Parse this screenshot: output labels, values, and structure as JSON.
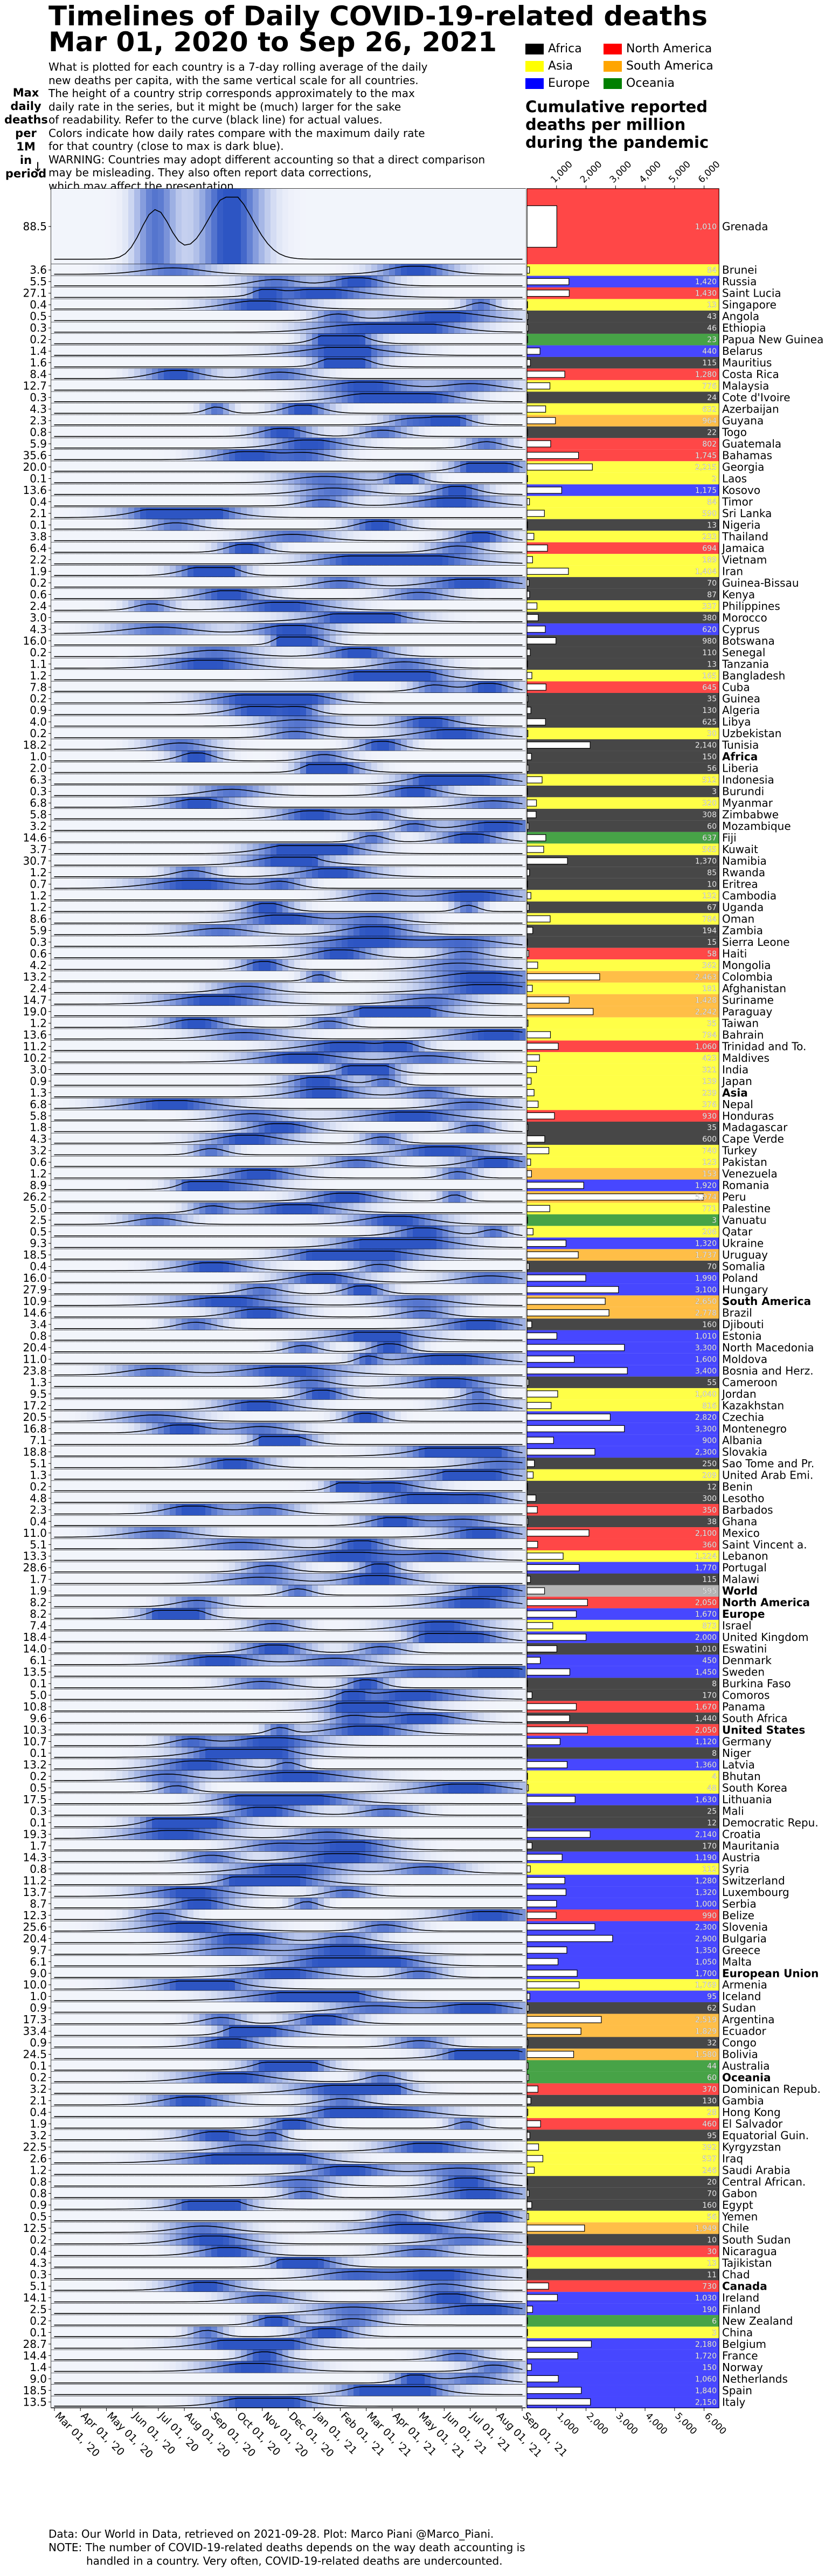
{
  "title_line1": "Timelines of Daily COVID-19-related deaths",
  "title_line2": "Mar 01, 2020 to Sep 26, 2021",
  "description": [
    "What is plotted for each country is a 7-day rolling average of the daily",
    "new deaths per capita, with the same vertical scale for all countries.",
    "The height of a country strip corresponds approximately to the max",
    "daily rate in the series, but it might be (much) larger for the sake",
    "of readability. Refer to the curve (black line) for actual values.",
    "Colors indicate how daily rates compare with the maximum daily rate",
    "for that country (close to max is dark blue).",
    "WARNING: Countries may adopt different accounting so that a direct comparison",
    "may be misleading. They also often report data corrections,",
    "which may affect the presentation."
  ],
  "max_label": [
    "Max",
    "daily",
    "deaths",
    "per 1M",
    "in",
    "period"
  ],
  "arrow": "↓",
  "legend": [
    {
      "label": "Africa",
      "color": "#000000"
    },
    {
      "label": "North America",
      "color": "#ff0000"
    },
    {
      "label": "Asia",
      "color": "#ffff00"
    },
    {
      "label": "South America",
      "color": "#ffa500"
    },
    {
      "label": "Europe",
      "color": "#0000ff"
    },
    {
      "label": "Oceania",
      "color": "#008000"
    }
  ],
  "cum_title": [
    "Cumulative reported",
    "deaths per million",
    "during the pandemic"
  ],
  "footer": [
    "Data: Our World in Data, retrieved on 2021-09-28. Plot: Marco Piani @Marco_Piani.",
    "NOTE: The number of COVID-19-related deaths depends on the way death accounting is",
    "handled in a country. Very often, COVID-19-related deaths are undercounted."
  ],
  "chart_data": {
    "type": "heatmap",
    "x_ticks": [
      "Mar 01, '20",
      "Apr 01, '20",
      "May 01, '20",
      "Jun 01, '20",
      "Jul 01, '20",
      "Aug 01, '20",
      "Sep 01, '20",
      "Oct 01, '20",
      "Nov 01, '20",
      "Dec 01, '20",
      "Jan 01, '21",
      "Feb 01, '21",
      "Mar 01, '21",
      "Apr 01, '21",
      "May 01, '21",
      "Jun 01, '21",
      "Jul 01, '21",
      "Aug 01, '21",
      "Sep 01, '21"
    ],
    "cum_ticks": [
      "1,000",
      "2,000",
      "3,000",
      "4,000",
      "5,000",
      "6,000"
    ],
    "cum_xlim": [
      0,
      6500
    ],
    "continent_colors": {
      "AF": "#000000",
      "NA": "#ff0000",
      "AS": "#ffff00",
      "SA": "#ffa500",
      "EU": "#0000ff",
      "OC": "#008000",
      "WO": "#999999"
    },
    "rows": [
      [
        "88.5",
        "Grenada",
        1010,
        "NA",
        0
      ],
      [
        "3.6",
        "Brunei",
        84,
        "AS",
        0
      ],
      [
        "5.5",
        "Russia",
        1420,
        "EU",
        0
      ],
      [
        "27.1",
        "Saint Lucia",
        1430,
        "NA",
        0
      ],
      [
        "0.4",
        "Singapore",
        13,
        "AS",
        0
      ],
      [
        "0.5",
        "Angola",
        43,
        "AF",
        0
      ],
      [
        "0.3",
        "Ethiopia",
        46,
        "AF",
        0
      ],
      [
        "0.2",
        "Papua New Guinea",
        23,
        "OC",
        0
      ],
      [
        "1.4",
        "Belarus",
        440,
        "EU",
        0
      ],
      [
        "1.6",
        "Mauritius",
        115,
        "AF",
        0
      ],
      [
        "8.4",
        "Costa Rica",
        1280,
        "NA",
        0
      ],
      [
        "12.7",
        "Malaysia",
        776,
        "AS",
        0
      ],
      [
        "0.3",
        "Cote d'Ivoire",
        24,
        "AF",
        0
      ],
      [
        "4.3",
        "Azerbaijan",
        632,
        "AS",
        0
      ],
      [
        "2.3",
        "Guyana",
        964,
        "SA",
        0
      ],
      [
        "0.8",
        "Togo",
        22,
        "AF",
        0
      ],
      [
        "5.9",
        "Guatemala",
        802,
        "NA",
        0
      ],
      [
        "35.6",
        "Bahamas",
        1745,
        "NA",
        0
      ],
      [
        "20.0",
        "Georgia",
        2215,
        "AS",
        0
      ],
      [
        "0.1",
        "Laos",
        2,
        "AS",
        0
      ],
      [
        "13.6",
        "Kosovo",
        1175,
        "EU",
        0
      ],
      [
        "0.4",
        "Timor",
        84,
        "AS",
        0
      ],
      [
        "2.1",
        "Sri Lanka",
        590,
        "AS",
        0
      ],
      [
        "0.1",
        "Nigeria",
        13,
        "AF",
        0
      ],
      [
        "3.8",
        "Thailand",
        233,
        "AS",
        0
      ],
      [
        "6.4",
        "Jamaica",
        694,
        "NA",
        0
      ],
      [
        "2.2",
        "Vietnam",
        189,
        "AS",
        0
      ],
      [
        "1.9",
        "Iran",
        1404,
        "AS",
        0
      ],
      [
        "0.2",
        "Guinea-Bissau",
        70,
        "AF",
        0
      ],
      [
        "0.6",
        "Kenya",
        87,
        "AF",
        0
      ],
      [
        "2.4",
        "Philippines",
        337,
        "AS",
        0
      ],
      [
        "3.0",
        "Morocco",
        380,
        "AF",
        0
      ],
      [
        "4.3",
        "Cyprus",
        620,
        "EU",
        0
      ],
      [
        "16.0",
        "Botswana",
        980,
        "AF",
        0
      ],
      [
        "0.2",
        "Senegal",
        110,
        "AF",
        0
      ],
      [
        "1.1",
        "Tanzania",
        13,
        "AF",
        0
      ],
      [
        "1.2",
        "Bangladesh",
        165,
        "AS",
        0
      ],
      [
        "7.8",
        "Cuba",
        645,
        "NA",
        0
      ],
      [
        "0.2",
        "Guinea",
        35,
        "AF",
        0
      ],
      [
        "0.9",
        "Algeria",
        130,
        "AF",
        0
      ],
      [
        "4.0",
        "Libya",
        625,
        "AF",
        0
      ],
      [
        "0.2",
        "Uzbekistan",
        30,
        "AS",
        0
      ],
      [
        "18.2",
        "Tunisia",
        2140,
        "AF",
        0
      ],
      [
        "1.0",
        "Africa",
        150,
        "AF",
        1
      ],
      [
        "2.0",
        "Liberia",
        56,
        "AF",
        0
      ],
      [
        "6.3",
        "Indonesia",
        512,
        "AS",
        0
      ],
      [
        "0.3",
        "Burundi",
        3,
        "AF",
        0
      ],
      [
        "6.8",
        "Myanmar",
        320,
        "AS",
        0
      ],
      [
        "5.8",
        "Zimbabwe",
        308,
        "AF",
        0
      ],
      [
        "3.2",
        "Mozambique",
        60,
        "AF",
        0
      ],
      [
        "14.6",
        "Fiji",
        637,
        "OC",
        0
      ],
      [
        "3.7",
        "Kuwait",
        565,
        "AS",
        0
      ],
      [
        "30.7",
        "Namibia",
        1370,
        "AF",
        0
      ],
      [
        "1.2",
        "Rwanda",
        85,
        "AF",
        0
      ],
      [
        "0.7",
        "Eritrea",
        10,
        "AF",
        0
      ],
      [
        "1.2",
        "Cambodia",
        132,
        "AS",
        0
      ],
      [
        "1.2",
        "Uganda",
        67,
        "AF",
        0
      ],
      [
        "8.6",
        "Oman",
        784,
        "AS",
        0
      ],
      [
        "5.9",
        "Zambia",
        194,
        "AF",
        0
      ],
      [
        "0.3",
        "Sierra Leone",
        15,
        "AF",
        0
      ],
      [
        "0.6",
        "Haiti",
        58,
        "NA",
        0
      ],
      [
        "4.2",
        "Mongolia",
        362,
        "AS",
        0
      ],
      [
        "13.2",
        "Colombia",
        2463,
        "SA",
        0
      ],
      [
        "2.4",
        "Afghanistan",
        181,
        "AS",
        0
      ],
      [
        "14.7",
        "Suriname",
        1428,
        "SA",
        0
      ],
      [
        "19.0",
        "Paraguay",
        2242,
        "SA",
        0
      ],
      [
        "1.2",
        "Taiwan",
        35,
        "AS",
        0
      ],
      [
        "13.6",
        "Bahrain",
        794,
        "AS",
        0
      ],
      [
        "11.2",
        "Trinidad and To.",
        1060,
        "NA",
        0
      ],
      [
        "10.2",
        "Maldives",
        423,
        "AS",
        0
      ],
      [
        "3.0",
        "India",
        321,
        "AS",
        0
      ],
      [
        "0.9",
        "Japan",
        139,
        "AS",
        0
      ],
      [
        "1.3",
        "Asia",
        239,
        "AS",
        1
      ],
      [
        "6.8",
        "Nepal",
        376,
        "AS",
        0
      ],
      [
        "5.8",
        "Honduras",
        930,
        "NA",
        0
      ],
      [
        "1.8",
        "Madagascar",
        35,
        "AF",
        0
      ],
      [
        "4.3",
        "Cape Verde",
        600,
        "AF",
        0
      ],
      [
        "3.2",
        "Turkey",
        740,
        "AS",
        0
      ],
      [
        "0.6",
        "Pakistan",
        123,
        "AS",
        0
      ],
      [
        "1.2",
        "Venezuela",
        153,
        "SA",
        0
      ],
      [
        "8.9",
        "Romania",
        1920,
        "EU",
        0
      ],
      [
        "26.2",
        "Peru",
        5974,
        "SA",
        0
      ],
      [
        "5.0",
        "Palestine",
        771,
        "AS",
        0
      ],
      [
        "2.5",
        "Vanuatu",
        3,
        "OC",
        0
      ],
      [
        "0.5",
        "Qatar",
        206,
        "AS",
        0
      ],
      [
        "9.3",
        "Ukraine",
        1320,
        "EU",
        0
      ],
      [
        "18.5",
        "Uruguay",
        1737,
        "SA",
        0
      ],
      [
        "0.4",
        "Somalia",
        70,
        "AF",
        0
      ],
      [
        "16.0",
        "Poland",
        1990,
        "EU",
        0
      ],
      [
        "27.9",
        "Hungary",
        3100,
        "EU",
        0
      ],
      [
        "10.9",
        "South America",
        2650,
        "SA",
        1
      ],
      [
        "14.6",
        "Brazil",
        2778,
        "SA",
        0
      ],
      [
        "3.4",
        "Djibouti",
        160,
        "AF",
        0
      ],
      [
        "0.8",
        "Estonia",
        1010,
        "EU",
        0
      ],
      [
        "20.4",
        "North Macedonia",
        3300,
        "EU",
        0
      ],
      [
        "11.0",
        "Moldova",
        1600,
        "EU",
        0
      ],
      [
        "23.8",
        "Bosnia and Herz.",
        3400,
        "EU",
        0
      ],
      [
        "1.3",
        "Cameroon",
        55,
        "AF",
        0
      ],
      [
        "9.5",
        "Jordan",
        1040,
        "AS",
        0
      ],
      [
        "17.2",
        "Kazakhstan",
        816,
        "AS",
        0
      ],
      [
        "20.5",
        "Czechia",
        2820,
        "EU",
        0
      ],
      [
        "16.8",
        "Montenegro",
        3300,
        "EU",
        0
      ],
      [
        "7.1",
        "Albania",
        900,
        "EU",
        0
      ],
      [
        "18.8",
        "Slovakia",
        2300,
        "EU",
        0
      ],
      [
        "5.1",
        "Sao Tome and Pr.",
        250,
        "AF",
        0
      ],
      [
        "1.3",
        "United Arab Emi.",
        209,
        "AS",
        0
      ],
      [
        "0.2",
        "Benin",
        12,
        "AF",
        0
      ],
      [
        "4.8",
        "Lesotho",
        300,
        "AF",
        0
      ],
      [
        "2.3",
        "Barbados",
        350,
        "NA",
        0
      ],
      [
        "0.4",
        "Ghana",
        38,
        "AF",
        0
      ],
      [
        "11.0",
        "Mexico",
        2100,
        "NA",
        0
      ],
      [
        "5.1",
        "Saint Vincent a.",
        360,
        "NA",
        0
      ],
      [
        "13.3",
        "Lebanon",
        1224,
        "AS",
        0
      ],
      [
        "28.6",
        "Portugal",
        1770,
        "EU",
        0
      ],
      [
        "1.7",
        "Malawi",
        115,
        "AF",
        0
      ],
      [
        "1.9",
        "World",
        595,
        "WO",
        1
      ],
      [
        "8.2",
        "North America",
        2050,
        "NA",
        1
      ],
      [
        "8.2",
        "Europe",
        1670,
        "EU",
        1
      ],
      [
        "7.4",
        "Israel",
        873,
        "AS",
        0
      ],
      [
        "18.4",
        "United Kingdom",
        2000,
        "EU",
        0
      ],
      [
        "14.0",
        "Eswatini",
        1010,
        "AF",
        0
      ],
      [
        "6.1",
        "Denmark",
        450,
        "EU",
        0
      ],
      [
        "13.5",
        "Sweden",
        1450,
        "EU",
        0
      ],
      [
        "0.1",
        "Burkina Faso",
        8,
        "AF",
        0
      ],
      [
        "5.0",
        "Comoros",
        170,
        "AF",
        0
      ],
      [
        "10.8",
        "Panama",
        1670,
        "NA",
        0
      ],
      [
        "9.6",
        "South Africa",
        1440,
        "AF",
        0
      ],
      [
        "10.3",
        "United States",
        2050,
        "NA",
        1
      ],
      [
        "10.7",
        "Germany",
        1120,
        "EU",
        0
      ],
      [
        "0.1",
        "Niger",
        8,
        "AF",
        0
      ],
      [
        "13.2",
        "Latvia",
        1360,
        "EU",
        0
      ],
      [
        "0.2",
        "Bhutan",
        4,
        "AS",
        0
      ],
      [
        "0.5",
        "South Korea",
        48,
        "AS",
        0
      ],
      [
        "17.5",
        "Lithuania",
        1630,
        "EU",
        0
      ],
      [
        "0.3",
        "Mali",
        25,
        "AF",
        0
      ],
      [
        "0.1",
        "Democratic Repu.",
        12,
        "AF",
        0
      ],
      [
        "19.3",
        "Croatia",
        2140,
        "EU",
        0
      ],
      [
        "1.7",
        "Mauritania",
        170,
        "AF",
        0
      ],
      [
        "14.3",
        "Austria",
        1190,
        "EU",
        0
      ],
      [
        "0.8",
        "Syria",
        112,
        "AS",
        0
      ],
      [
        "11.2",
        "Switzerland",
        1280,
        "EU",
        0
      ],
      [
        "13.7",
        "Luxembourg",
        1320,
        "EU",
        0
      ],
      [
        "8.7",
        "Serbia",
        1000,
        "EU",
        0
      ],
      [
        "12.3",
        "Belize",
        990,
        "NA",
        0
      ],
      [
        "25.6",
        "Slovenia",
        2300,
        "EU",
        0
      ],
      [
        "20.4",
        "Bulgaria",
        2900,
        "EU",
        0
      ],
      [
        "9.7",
        "Greece",
        1350,
        "EU",
        0
      ],
      [
        "6.1",
        "Malta",
        1050,
        "EU",
        0
      ],
      [
        "9.0",
        "European Union",
        1700,
        "EU",
        1
      ],
      [
        "10.0",
        "Armenia",
        1769,
        "AS",
        0
      ],
      [
        "1.0",
        "Iceland",
        95,
        "EU",
        0
      ],
      [
        "0.9",
        "Sudan",
        62,
        "AF",
        0
      ],
      [
        "17.3",
        "Argentina",
        2519,
        "SA",
        0
      ],
      [
        "33.4",
        "Ecuador",
        1829,
        "SA",
        0
      ],
      [
        "0.9",
        "Congo",
        32,
        "AF",
        0
      ],
      [
        "24.5",
        "Bolivia",
        1580,
        "SA",
        0
      ],
      [
        "0.1",
        "Australia",
        44,
        "OC",
        0
      ],
      [
        "0.2",
        "Oceania",
        60,
        "OC",
        1
      ],
      [
        "3.2",
        "Dominican Repub.",
        370,
        "NA",
        0
      ],
      [
        "2.1",
        "Gambia",
        130,
        "AF",
        0
      ],
      [
        "0.4",
        "Hong Kong",
        28,
        "AS",
        0
      ],
      [
        "1.9",
        "El Salvador",
        460,
        "NA",
        0
      ],
      [
        "3.2",
        "Equatorial Guin.",
        95,
        "AF",
        0
      ],
      [
        "22.5",
        "Kyrgyzstan",
        392,
        "AS",
        0
      ],
      [
        "2.6",
        "Iraq",
        537,
        "AS",
        0
      ],
      [
        "1.2",
        "Saudi Arabia",
        246,
        "AS",
        0
      ],
      [
        "0.8",
        "Central African.",
        20,
        "AF",
        0
      ],
      [
        "0.8",
        "Gabon",
        70,
        "AF",
        0
      ],
      [
        "0.9",
        "Egypt",
        160,
        "AF",
        0
      ],
      [
        "0.5",
        "Yemen",
        56,
        "AS",
        0
      ],
      [
        "12.5",
        "Chile",
        1949,
        "SA",
        0
      ],
      [
        "0.2",
        "South Sudan",
        10,
        "AF",
        0
      ],
      [
        "0.4",
        "Nicaragua",
        30,
        "NA",
        0
      ],
      [
        "4.3",
        "Tajikistan",
        13,
        "AS",
        0
      ],
      [
        "0.3",
        "Chad",
        11,
        "AF",
        0
      ],
      [
        "5.1",
        "Canada",
        730,
        "NA",
        1
      ],
      [
        "14.1",
        "Ireland",
        1030,
        "EU",
        0
      ],
      [
        "2.5",
        "Finland",
        190,
        "EU",
        0
      ],
      [
        "0.2",
        "New Zealand",
        6,
        "OC",
        0
      ],
      [
        "0.1",
        "China",
        3,
        "AS",
        0
      ],
      [
        "28.7",
        "Belgium",
        2180,
        "EU",
        0
      ],
      [
        "14.4",
        "France",
        1720,
        "EU",
        0
      ],
      [
        "1.4",
        "Norway",
        150,
        "EU",
        0
      ],
      [
        "9.0",
        "Netherlands",
        1060,
        "EU",
        0
      ],
      [
        "18.5",
        "Spain",
        1840,
        "EU",
        0
      ],
      [
        "13.5",
        "Italy",
        2150,
        "EU",
        0
      ]
    ]
  }
}
